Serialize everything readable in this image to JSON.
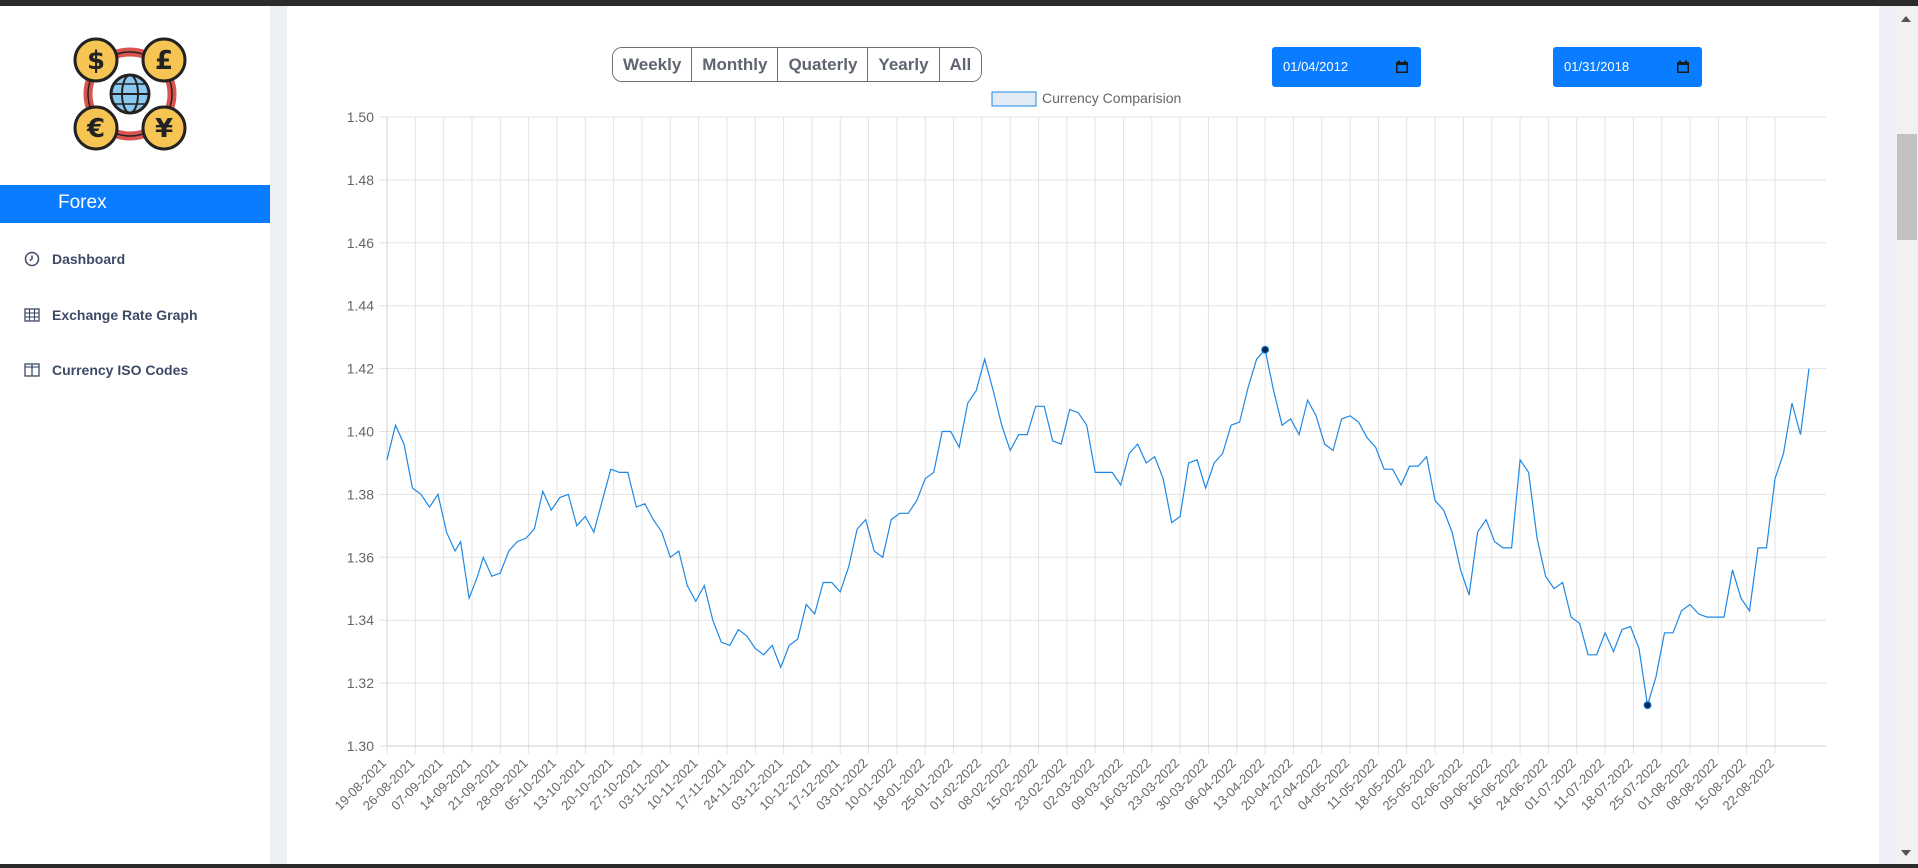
{
  "sidebar": {
    "brand": "Forex",
    "items": [
      {
        "label": "Dashboard",
        "icon": "clock-icon"
      },
      {
        "label": "Exchange Rate Graph",
        "icon": "table-icon"
      },
      {
        "label": "Currency ISO Codes",
        "icon": "columns-icon"
      }
    ]
  },
  "logo": {
    "symbols": [
      "$",
      "£",
      "€",
      "¥"
    ]
  },
  "controls": {
    "range_buttons": [
      "Weekly",
      "Monthly",
      "Quaterly",
      "Yearly",
      "All"
    ],
    "start_date": "01/04/2012",
    "end_date": "01/31/2018"
  },
  "colors": {
    "accent": "#0a7cff",
    "line": "#1e88e5",
    "nav_text": "#3d4a66"
  },
  "chart_data": {
    "type": "line",
    "legend": "Currency Comparision",
    "legend_position": "top-center",
    "ylim": [
      1.3,
      1.5
    ],
    "yticks": [
      "1.50",
      "1.48",
      "1.46",
      "1.44",
      "1.42",
      "1.40",
      "1.38",
      "1.36",
      "1.34",
      "1.32",
      "1.30"
    ],
    "grid": true,
    "xticks": [
      "19-08-2021",
      "26-08-2021",
      "07-09-2021",
      "14-09-2021",
      "21-09-2021",
      "28-09-2021",
      "05-10-2021",
      "13-10-2021",
      "20-10-2021",
      "27-10-2021",
      "03-11-2021",
      "10-11-2021",
      "17-11-2021",
      "24-11-2021",
      "03-12-2021",
      "10-12-2021",
      "17-12-2021",
      "03-01-2022",
      "10-01-2022",
      "18-01-2022",
      "25-01-2022",
      "01-02-2022",
      "08-02-2022",
      "15-02-2022",
      "23-02-2022",
      "02-03-2022",
      "09-03-2022",
      "16-03-2022",
      "23-03-2022",
      "30-03-2022",
      "06-04-2022",
      "13-04-2022",
      "20-04-2022",
      "27-04-2022",
      "04-05-2022",
      "11-05-2022",
      "18-05-2022",
      "25-05-2022",
      "02-06-2022",
      "09-06-2022",
      "16-06-2022",
      "24-06-2022",
      "01-07-2022",
      "11-07-2022",
      "18-07-2022",
      "25-07-2022",
      "01-08-2022",
      "08-08-2022",
      "15-08-2022",
      "22-08-2022"
    ],
    "x_max": 50.8,
    "points": [
      [
        0,
        1.391
      ],
      [
        0.3,
        1.402
      ],
      [
        0.6,
        1.396
      ],
      [
        0.9,
        1.382
      ],
      [
        1.2,
        1.38
      ],
      [
        1.5,
        1.376
      ],
      [
        1.8,
        1.38
      ],
      [
        2.1,
        1.368
      ],
      [
        2.4,
        1.362
      ],
      [
        2.6,
        1.365
      ],
      [
        2.9,
        1.347
      ],
      [
        3.2,
        1.354
      ],
      [
        3.4,
        1.36
      ],
      [
        3.7,
        1.354
      ],
      [
        4.0,
        1.355
      ],
      [
        4.3,
        1.362
      ],
      [
        4.6,
        1.365
      ],
      [
        4.9,
        1.366
      ],
      [
        5.2,
        1.369
      ],
      [
        5.5,
        1.381
      ],
      [
        5.8,
        1.375
      ],
      [
        6.1,
        1.379
      ],
      [
        6.4,
        1.38
      ],
      [
        6.7,
        1.37
      ],
      [
        7.0,
        1.373
      ],
      [
        7.3,
        1.368
      ],
      [
        7.6,
        1.378
      ],
      [
        7.9,
        1.388
      ],
      [
        8.2,
        1.387
      ],
      [
        8.5,
        1.387
      ],
      [
        8.8,
        1.376
      ],
      [
        9.1,
        1.377
      ],
      [
        9.4,
        1.372
      ],
      [
        9.7,
        1.368
      ],
      [
        10.0,
        1.36
      ],
      [
        10.3,
        1.362
      ],
      [
        10.6,
        1.351
      ],
      [
        10.9,
        1.346
      ],
      [
        11.2,
        1.351
      ],
      [
        11.5,
        1.34
      ],
      [
        11.8,
        1.333
      ],
      [
        12.1,
        1.332
      ],
      [
        12.4,
        1.337
      ],
      [
        12.7,
        1.335
      ],
      [
        13.0,
        1.331
      ],
      [
        13.3,
        1.329
      ],
      [
        13.6,
        1.332
      ],
      [
        13.9,
        1.325
      ],
      [
        14.2,
        1.332
      ],
      [
        14.5,
        1.334
      ],
      [
        14.8,
        1.345
      ],
      [
        15.1,
        1.342
      ],
      [
        15.4,
        1.352
      ],
      [
        15.7,
        1.352
      ],
      [
        16.0,
        1.349
      ],
      [
        16.3,
        1.357
      ],
      [
        16.6,
        1.369
      ],
      [
        16.9,
        1.372
      ],
      [
        17.2,
        1.362
      ],
      [
        17.5,
        1.36
      ],
      [
        17.8,
        1.372
      ],
      [
        18.1,
        1.374
      ],
      [
        18.4,
        1.374
      ],
      [
        18.7,
        1.378
      ],
      [
        19.0,
        1.385
      ],
      [
        19.3,
        1.387
      ],
      [
        19.6,
        1.4
      ],
      [
        19.9,
        1.4
      ],
      [
        20.2,
        1.395
      ],
      [
        20.5,
        1.409
      ],
      [
        20.8,
        1.413
      ],
      [
        21.1,
        1.423
      ],
      [
        21.4,
        1.413
      ],
      [
        21.7,
        1.402
      ],
      [
        22.0,
        1.394
      ],
      [
        22.3,
        1.399
      ],
      [
        22.6,
        1.399
      ],
      [
        22.9,
        1.408
      ],
      [
        23.2,
        1.408
      ],
      [
        23.5,
        1.397
      ],
      [
        23.8,
        1.396
      ],
      [
        24.1,
        1.407
      ],
      [
        24.4,
        1.406
      ],
      [
        24.7,
        1.402
      ],
      [
        25.0,
        1.387
      ],
      [
        25.3,
        1.387
      ],
      [
        25.6,
        1.387
      ],
      [
        25.9,
        1.383
      ],
      [
        26.2,
        1.393
      ],
      [
        26.5,
        1.396
      ],
      [
        26.8,
        1.39
      ],
      [
        27.1,
        1.392
      ],
      [
        27.4,
        1.385
      ],
      [
        27.7,
        1.371
      ],
      [
        28.0,
        1.373
      ],
      [
        28.3,
        1.39
      ],
      [
        28.6,
        1.391
      ],
      [
        28.9,
        1.382
      ],
      [
        29.2,
        1.39
      ],
      [
        29.5,
        1.393
      ],
      [
        29.8,
        1.402
      ],
      [
        30.1,
        1.403
      ],
      [
        30.4,
        1.414
      ],
      [
        30.7,
        1.423
      ],
      [
        31.0,
        1.426
      ],
      [
        31.3,
        1.413
      ],
      [
        31.6,
        1.402
      ],
      [
        31.9,
        1.404
      ],
      [
        32.2,
        1.399
      ],
      [
        32.5,
        1.41
      ],
      [
        32.8,
        1.405
      ],
      [
        33.1,
        1.396
      ],
      [
        33.4,
        1.394
      ],
      [
        33.7,
        1.404
      ],
      [
        34.0,
        1.405
      ],
      [
        34.3,
        1.403
      ],
      [
        34.6,
        1.398
      ],
      [
        34.9,
        1.395
      ],
      [
        35.2,
        1.388
      ],
      [
        35.5,
        1.388
      ],
      [
        35.8,
        1.383
      ],
      [
        36.1,
        1.389
      ],
      [
        36.4,
        1.389
      ],
      [
        36.7,
        1.392
      ],
      [
        37.0,
        1.378
      ],
      [
        37.3,
        1.375
      ],
      [
        37.6,
        1.368
      ],
      [
        37.9,
        1.356
      ],
      [
        38.2,
        1.348
      ],
      [
        38.5,
        1.368
      ],
      [
        38.8,
        1.372
      ],
      [
        39.1,
        1.365
      ],
      [
        39.4,
        1.363
      ],
      [
        39.7,
        1.363
      ],
      [
        40.0,
        1.391
      ],
      [
        40.3,
        1.387
      ],
      [
        40.6,
        1.366
      ],
      [
        40.9,
        1.354
      ],
      [
        41.2,
        1.35
      ],
      [
        41.5,
        1.352
      ],
      [
        41.8,
        1.341
      ],
      [
        42.1,
        1.339
      ],
      [
        42.4,
        1.329
      ],
      [
        42.7,
        1.329
      ],
      [
        43.0,
        1.336
      ],
      [
        43.3,
        1.33
      ],
      [
        43.6,
        1.337
      ],
      [
        43.9,
        1.338
      ],
      [
        44.2,
        1.331
      ],
      [
        44.5,
        1.313
      ],
      [
        44.8,
        1.322
      ],
      [
        45.1,
        1.336
      ],
      [
        45.4,
        1.336
      ],
      [
        45.7,
        1.343
      ],
      [
        46.0,
        1.345
      ],
      [
        46.3,
        1.342
      ],
      [
        46.6,
        1.341
      ],
      [
        46.9,
        1.341
      ],
      [
        47.2,
        1.341
      ],
      [
        47.5,
        1.356
      ],
      [
        47.8,
        1.347
      ],
      [
        48.1,
        1.343
      ],
      [
        48.4,
        1.363
      ],
      [
        48.7,
        1.363
      ],
      [
        49.0,
        1.385
      ],
      [
        49.3,
        1.393
      ],
      [
        49.6,
        1.409
      ],
      [
        49.9,
        1.399
      ],
      [
        50.2,
        1.42
      ]
    ]
  }
}
